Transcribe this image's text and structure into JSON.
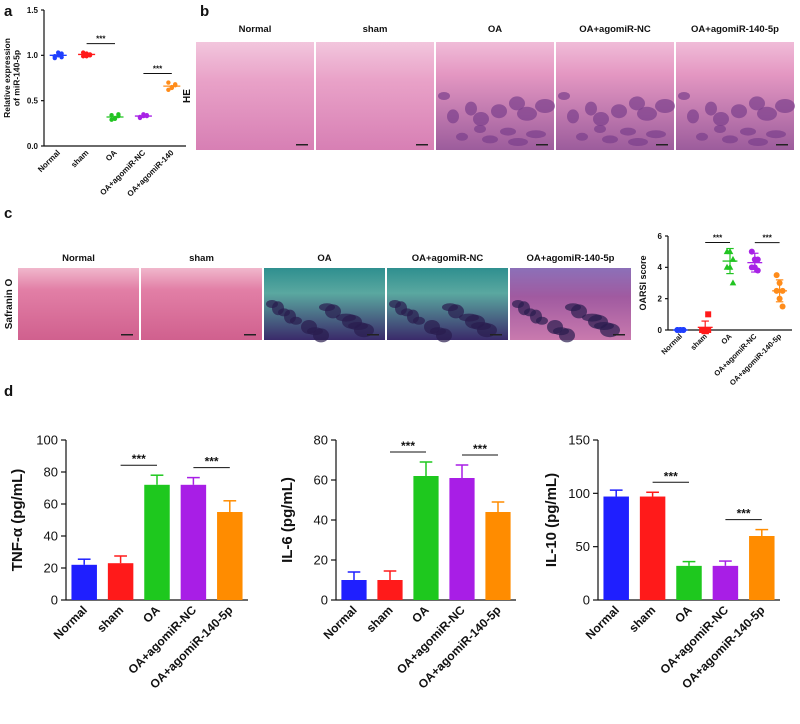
{
  "panel_labels": [
    "a",
    "b",
    "c",
    "d"
  ],
  "micrographs": [
    {
      "stain": "HE",
      "labels": [
        "Normal",
        "sham",
        "OA",
        "OA+agomiR-NC",
        "OA+agomiR-140-5p"
      ]
    },
    {
      "stain": "Safranin O",
      "labels": [
        "Normal",
        "sham",
        "OA",
        "OA+agomiR-NC",
        "OA+agomiR-140-5p"
      ]
    }
  ],
  "chart_data": [
    {
      "type": "dot",
      "y_label": [
        "Relative expression",
        "of miR-140-5p"
      ],
      "categories": [
        "Normal",
        "sham",
        "OA",
        "OA+agomiR-NC",
        "OA+agomiR-140"
      ],
      "colors": [
        "#1f3fff",
        "#ff1a1a",
        "#22c422",
        "#a822e6",
        "#ff8c1a"
      ],
      "markers": [
        "circle",
        "circle",
        "circle",
        "circle",
        "circle"
      ],
      "values": [
        1.0,
        1.01,
        0.32,
        0.33,
        0.66
      ],
      "points": [
        [
          0.97,
          1.0,
          1.02,
          0.99,
          1.03,
          0.98
        ],
        [
          0.99,
          1.02,
          1.0,
          1.03,
          0.99,
          1.01
        ],
        [
          0.29,
          0.31,
          0.33,
          0.34,
          0.3,
          0.35
        ],
        [
          0.32,
          0.33,
          0.34,
          0.31,
          0.35,
          0.33
        ],
        [
          0.62,
          0.65,
          0.68,
          0.7,
          0.64,
          0.67
        ]
      ],
      "ylim": [
        0,
        1.5
      ],
      "yticks": [
        {
          "value": 0,
          "label": "0.0"
        },
        0.5,
        {
          "value": 1,
          "label": "1.0"
        },
        1.5
      ],
      "significance": [
        {
          "label": "***",
          "from": "sham",
          "to": "OA"
        },
        {
          "label": "***",
          "from": "OA+agomiR-NC",
          "to": "OA+agomiR-140"
        }
      ]
    },
    {
      "type": "dot",
      "y_label": "OARSI score",
      "categories": [
        "Normal",
        "sham",
        "OA",
        "OA+agomiR-NC",
        "OA+agomiR-140-5p"
      ],
      "colors": [
        "#1f3fff",
        "#ff1a1a",
        "#22c422",
        "#a822e6",
        "#ff8c1a"
      ],
      "markers": [
        "circle",
        "square",
        "triangle",
        "circle",
        "circle"
      ],
      "values": [
        0,
        0.17,
        4.4,
        4.3,
        2.5
      ],
      "errors": [
        0.1,
        0.4,
        0.8,
        0.6,
        0.7
      ],
      "points": [
        [
          0,
          0,
          0,
          0,
          0,
          0
        ],
        [
          0,
          0,
          0,
          0,
          0,
          1
        ],
        [
          5,
          5,
          4.5,
          4,
          4,
          3
        ],
        [
          5,
          4.5,
          4.5,
          4,
          4,
          3.8
        ],
        [
          3.5,
          3,
          2.5,
          2.5,
          2,
          1.5
        ]
      ],
      "ylim": [
        0,
        6
      ],
      "yticks": [
        0,
        2,
        4,
        6
      ],
      "significance": [
        {
          "label": "***",
          "from": "sham",
          "to": "OA"
        },
        {
          "label": "***",
          "from": "OA+agomiR-NC",
          "to": "OA+agomiR-140-5p"
        }
      ]
    },
    {
      "type": "bar",
      "y_label": "TNF-α (pg/mL)",
      "categories": [
        "Normal",
        "sham",
        "OA",
        "OA+agomiR-NC",
        "OA+agomiR-140-5p"
      ],
      "colors": [
        "#1f1fff",
        "#ff1a1a",
        "#1ec81e",
        "#a81ee6",
        "#ff8c00"
      ],
      "values": [
        22,
        23,
        72,
        72,
        55
      ],
      "errors": [
        3.5,
        4.5,
        6,
        4.5,
        7
      ],
      "ylim": [
        0,
        100
      ],
      "yticks": [
        0,
        20,
        40,
        60,
        80,
        100
      ],
      "significance": [
        {
          "label": "***",
          "from": "sham",
          "to": "OA"
        },
        {
          "label": "***",
          "from": "OA+agomiR-NC",
          "to": "OA+agomiR-140-5p"
        }
      ]
    },
    {
      "type": "bar",
      "y_label": "IL-6 (pg/mL)",
      "categories": [
        "Normal",
        "sham",
        "OA",
        "OA+agomiR-NC",
        "OA+agomiR-140-5p"
      ],
      "colors": [
        "#1f1fff",
        "#ff1a1a",
        "#1ec81e",
        "#a81ee6",
        "#ff8c00"
      ],
      "values": [
        10,
        10,
        62,
        61,
        44
      ],
      "errors": [
        4,
        4.5,
        7,
        6.5,
        5
      ],
      "ylim": [
        0,
        80
      ],
      "yticks": [
        0,
        20,
        40,
        60,
        80
      ],
      "significance": [
        {
          "label": "***",
          "from": "sham",
          "to": "OA"
        },
        {
          "label": "***",
          "from": "OA+agomiR-NC",
          "to": "OA+agomiR-140-5p"
        }
      ]
    },
    {
      "type": "bar",
      "y_label": "IL-10 (pg/mL)",
      "categories": [
        "Normal",
        "sham",
        "OA",
        "OA+agomiR-NC",
        "OA+agomiR-140-5p"
      ],
      "colors": [
        "#1f1fff",
        "#ff1a1a",
        "#1ec81e",
        "#a81ee6",
        "#ff8c00"
      ],
      "values": [
        97,
        97,
        32,
        32,
        60
      ],
      "errors": [
        6,
        4,
        4,
        4.5,
        6
      ],
      "ylim": [
        0,
        150
      ],
      "yticks": [
        0,
        50,
        100,
        150
      ],
      "significance": [
        {
          "label": "***",
          "from": "sham",
          "to": "OA"
        },
        {
          "label": "***",
          "from": "OA+agomiR-NC",
          "to": "OA+agomiR-140-5p"
        }
      ]
    }
  ]
}
